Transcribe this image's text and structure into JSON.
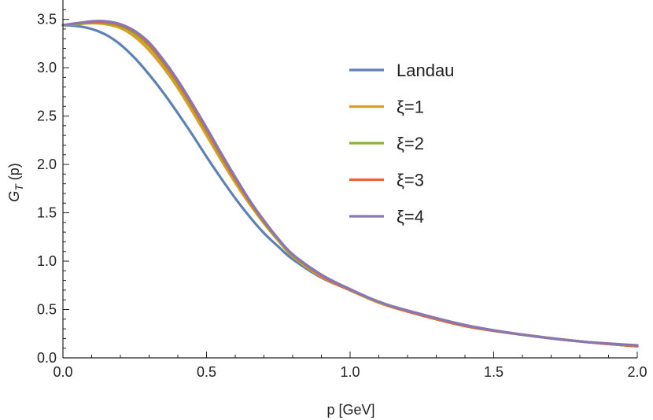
{
  "chart_data": {
    "type": "line",
    "xlabel": "p [GeV]",
    "ylabel": "G",
    "ylabel_sub": "T",
    "ylabel_suffix": " (p)",
    "xlim": [
      0,
      2.0
    ],
    "ylim": [
      0,
      3.7
    ],
    "xticks": [
      {
        "value": 0.0,
        "label": "0.0"
      },
      {
        "value": 0.5,
        "label": "0.5"
      },
      {
        "value": 1.0,
        "label": "1.0"
      },
      {
        "value": 1.5,
        "label": "1.5"
      },
      {
        "value": 2.0,
        "label": "2.0"
      }
    ],
    "yticks": [
      {
        "value": 0.0,
        "label": "0.0"
      },
      {
        "value": 0.5,
        "label": "0.5"
      },
      {
        "value": 1.0,
        "label": "1.0"
      },
      {
        "value": 1.5,
        "label": "1.5"
      },
      {
        "value": 2.0,
        "label": "2.0"
      },
      {
        "value": 2.5,
        "label": "2.5"
      },
      {
        "value": 3.0,
        "label": "3.0"
      },
      {
        "value": 3.5,
        "label": "3.5"
      }
    ],
    "grid": false,
    "legend_position": "top-right",
    "series": [
      {
        "name": "Landau",
        "color": "#5E81B5",
        "x": [
          0.0,
          0.05,
          0.1,
          0.15,
          0.2,
          0.25,
          0.3,
          0.35,
          0.4,
          0.45,
          0.5,
          0.55,
          0.6,
          0.65,
          0.7,
          0.75,
          0.8,
          0.9,
          1.0,
          1.1,
          1.2,
          1.4,
          1.6,
          1.8,
          2.0
        ],
        "y": [
          3.44,
          3.43,
          3.4,
          3.34,
          3.24,
          3.1,
          2.93,
          2.74,
          2.53,
          2.31,
          2.08,
          1.86,
          1.65,
          1.46,
          1.29,
          1.15,
          1.02,
          0.83,
          0.7,
          0.57,
          0.48,
          0.33,
          0.24,
          0.17,
          0.12
        ]
      },
      {
        "name": "ξ=1",
        "color": "#E19C24",
        "x": [
          0.0,
          0.05,
          0.1,
          0.15,
          0.2,
          0.25,
          0.3,
          0.35,
          0.4,
          0.45,
          0.5,
          0.55,
          0.6,
          0.65,
          0.7,
          0.75,
          0.8,
          0.9,
          1.0,
          1.1,
          1.2,
          1.4,
          1.6,
          1.8,
          2.0
        ],
        "y": [
          3.44,
          3.45,
          3.46,
          3.45,
          3.41,
          3.32,
          3.18,
          3.0,
          2.79,
          2.55,
          2.3,
          2.05,
          1.81,
          1.59,
          1.39,
          1.21,
          1.05,
          0.84,
          0.7,
          0.57,
          0.48,
          0.33,
          0.24,
          0.17,
          0.12
        ]
      },
      {
        "name": "ξ=2",
        "color": "#8FB032",
        "x": [
          0.0,
          0.05,
          0.1,
          0.15,
          0.2,
          0.25,
          0.3,
          0.35,
          0.4,
          0.45,
          0.5,
          0.55,
          0.6,
          0.65,
          0.7,
          0.75,
          0.8,
          0.9,
          1.0,
          1.1,
          1.2,
          1.4,
          1.6,
          1.8,
          2.0
        ],
        "y": [
          3.44,
          3.45,
          3.47,
          3.46,
          3.43,
          3.35,
          3.22,
          3.04,
          2.83,
          2.59,
          2.34,
          2.08,
          1.84,
          1.61,
          1.4,
          1.22,
          1.06,
          0.85,
          0.7,
          0.58,
          0.48,
          0.33,
          0.24,
          0.17,
          0.12
        ]
      },
      {
        "name": "ξ=3",
        "color": "#EB6235",
        "x": [
          0.0,
          0.05,
          0.1,
          0.15,
          0.2,
          0.25,
          0.3,
          0.35,
          0.4,
          0.45,
          0.5,
          0.55,
          0.6,
          0.65,
          0.7,
          0.75,
          0.8,
          0.9,
          1.0,
          1.1,
          1.2,
          1.4,
          1.6,
          1.8,
          2.0
        ],
        "y": [
          3.44,
          3.46,
          3.47,
          3.47,
          3.44,
          3.37,
          3.24,
          3.06,
          2.85,
          2.61,
          2.36,
          2.1,
          1.85,
          1.62,
          1.41,
          1.23,
          1.07,
          0.85,
          0.7,
          0.58,
          0.48,
          0.33,
          0.24,
          0.17,
          0.12
        ]
      },
      {
        "name": "ξ=4",
        "color": "#8778B3",
        "x": [
          0.0,
          0.05,
          0.1,
          0.15,
          0.2,
          0.25,
          0.3,
          0.35,
          0.4,
          0.45,
          0.5,
          0.55,
          0.6,
          0.65,
          0.7,
          0.75,
          0.8,
          0.9,
          1.0,
          1.1,
          1.2,
          1.4,
          1.6,
          1.8,
          2.0
        ],
        "y": [
          3.44,
          3.46,
          3.48,
          3.48,
          3.45,
          3.38,
          3.26,
          3.08,
          2.87,
          2.63,
          2.38,
          2.12,
          1.87,
          1.63,
          1.42,
          1.23,
          1.07,
          0.86,
          0.71,
          0.58,
          0.49,
          0.34,
          0.24,
          0.17,
          0.13
        ]
      }
    ]
  }
}
